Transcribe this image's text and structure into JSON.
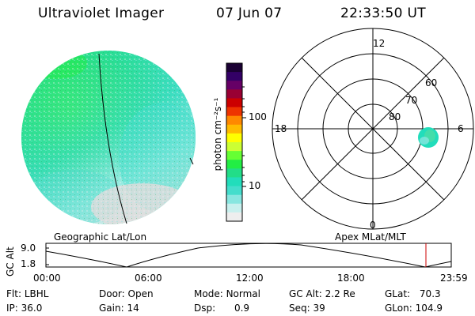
{
  "header": {
    "instrument": "Ultraviolet Imager",
    "date": "07 Jun 07",
    "time": "22:33:50 UT"
  },
  "colorbar": {
    "unit_label": "photon cm⁻²s⁻¹",
    "ticks": [
      "100",
      "10"
    ],
    "colors": [
      "#1a0033",
      "#330066",
      "#660066",
      "#990033",
      "#cc0000",
      "#ee3300",
      "#ff8800",
      "#ffbb00",
      "#ffff00",
      "#ccff33",
      "#66ff33",
      "#22ee44",
      "#22dd88",
      "#22ddbb",
      "#44ddcc",
      "#88e6e0",
      "#c8f0ee",
      "#eeeeee"
    ]
  },
  "polar_plot": {
    "labels": {
      "top": "12",
      "bottom": "0",
      "left": "18",
      "right": "6"
    },
    "lat_labels": [
      "60",
      "70",
      "80"
    ]
  },
  "captions": {
    "left": "Geographic Lat/Lon",
    "right": "Apex MLat/MLT"
  },
  "altitude_plot": {
    "ylabel": "GC Alt",
    "yticks": [
      "9.0",
      "1.8"
    ],
    "xticks": [
      "00:00",
      "06:00",
      "12:00",
      "18:00",
      "23:59"
    ],
    "marker_color": "#cc0000"
  },
  "info": {
    "flt_label": "Flt:",
    "flt_value": "LBHL",
    "ip_label": "IP:",
    "ip_value": "36.0",
    "door_label": "Door:",
    "door_value": "Open",
    "gain_label": "Gain:",
    "gain_value": "14",
    "mode_label": "Mode:",
    "mode_value": "Normal",
    "dsp_label": "Dsp:",
    "dsp_value": "0.9",
    "gcalt_label": "GC Alt:",
    "gcalt_value": "2.2 Re",
    "seq_label": "Seq:",
    "seq_value": "39",
    "glat_label": "GLat:",
    "glat_value": "70.3",
    "glon_label": "GLon:",
    "glon_value": "104.9"
  }
}
